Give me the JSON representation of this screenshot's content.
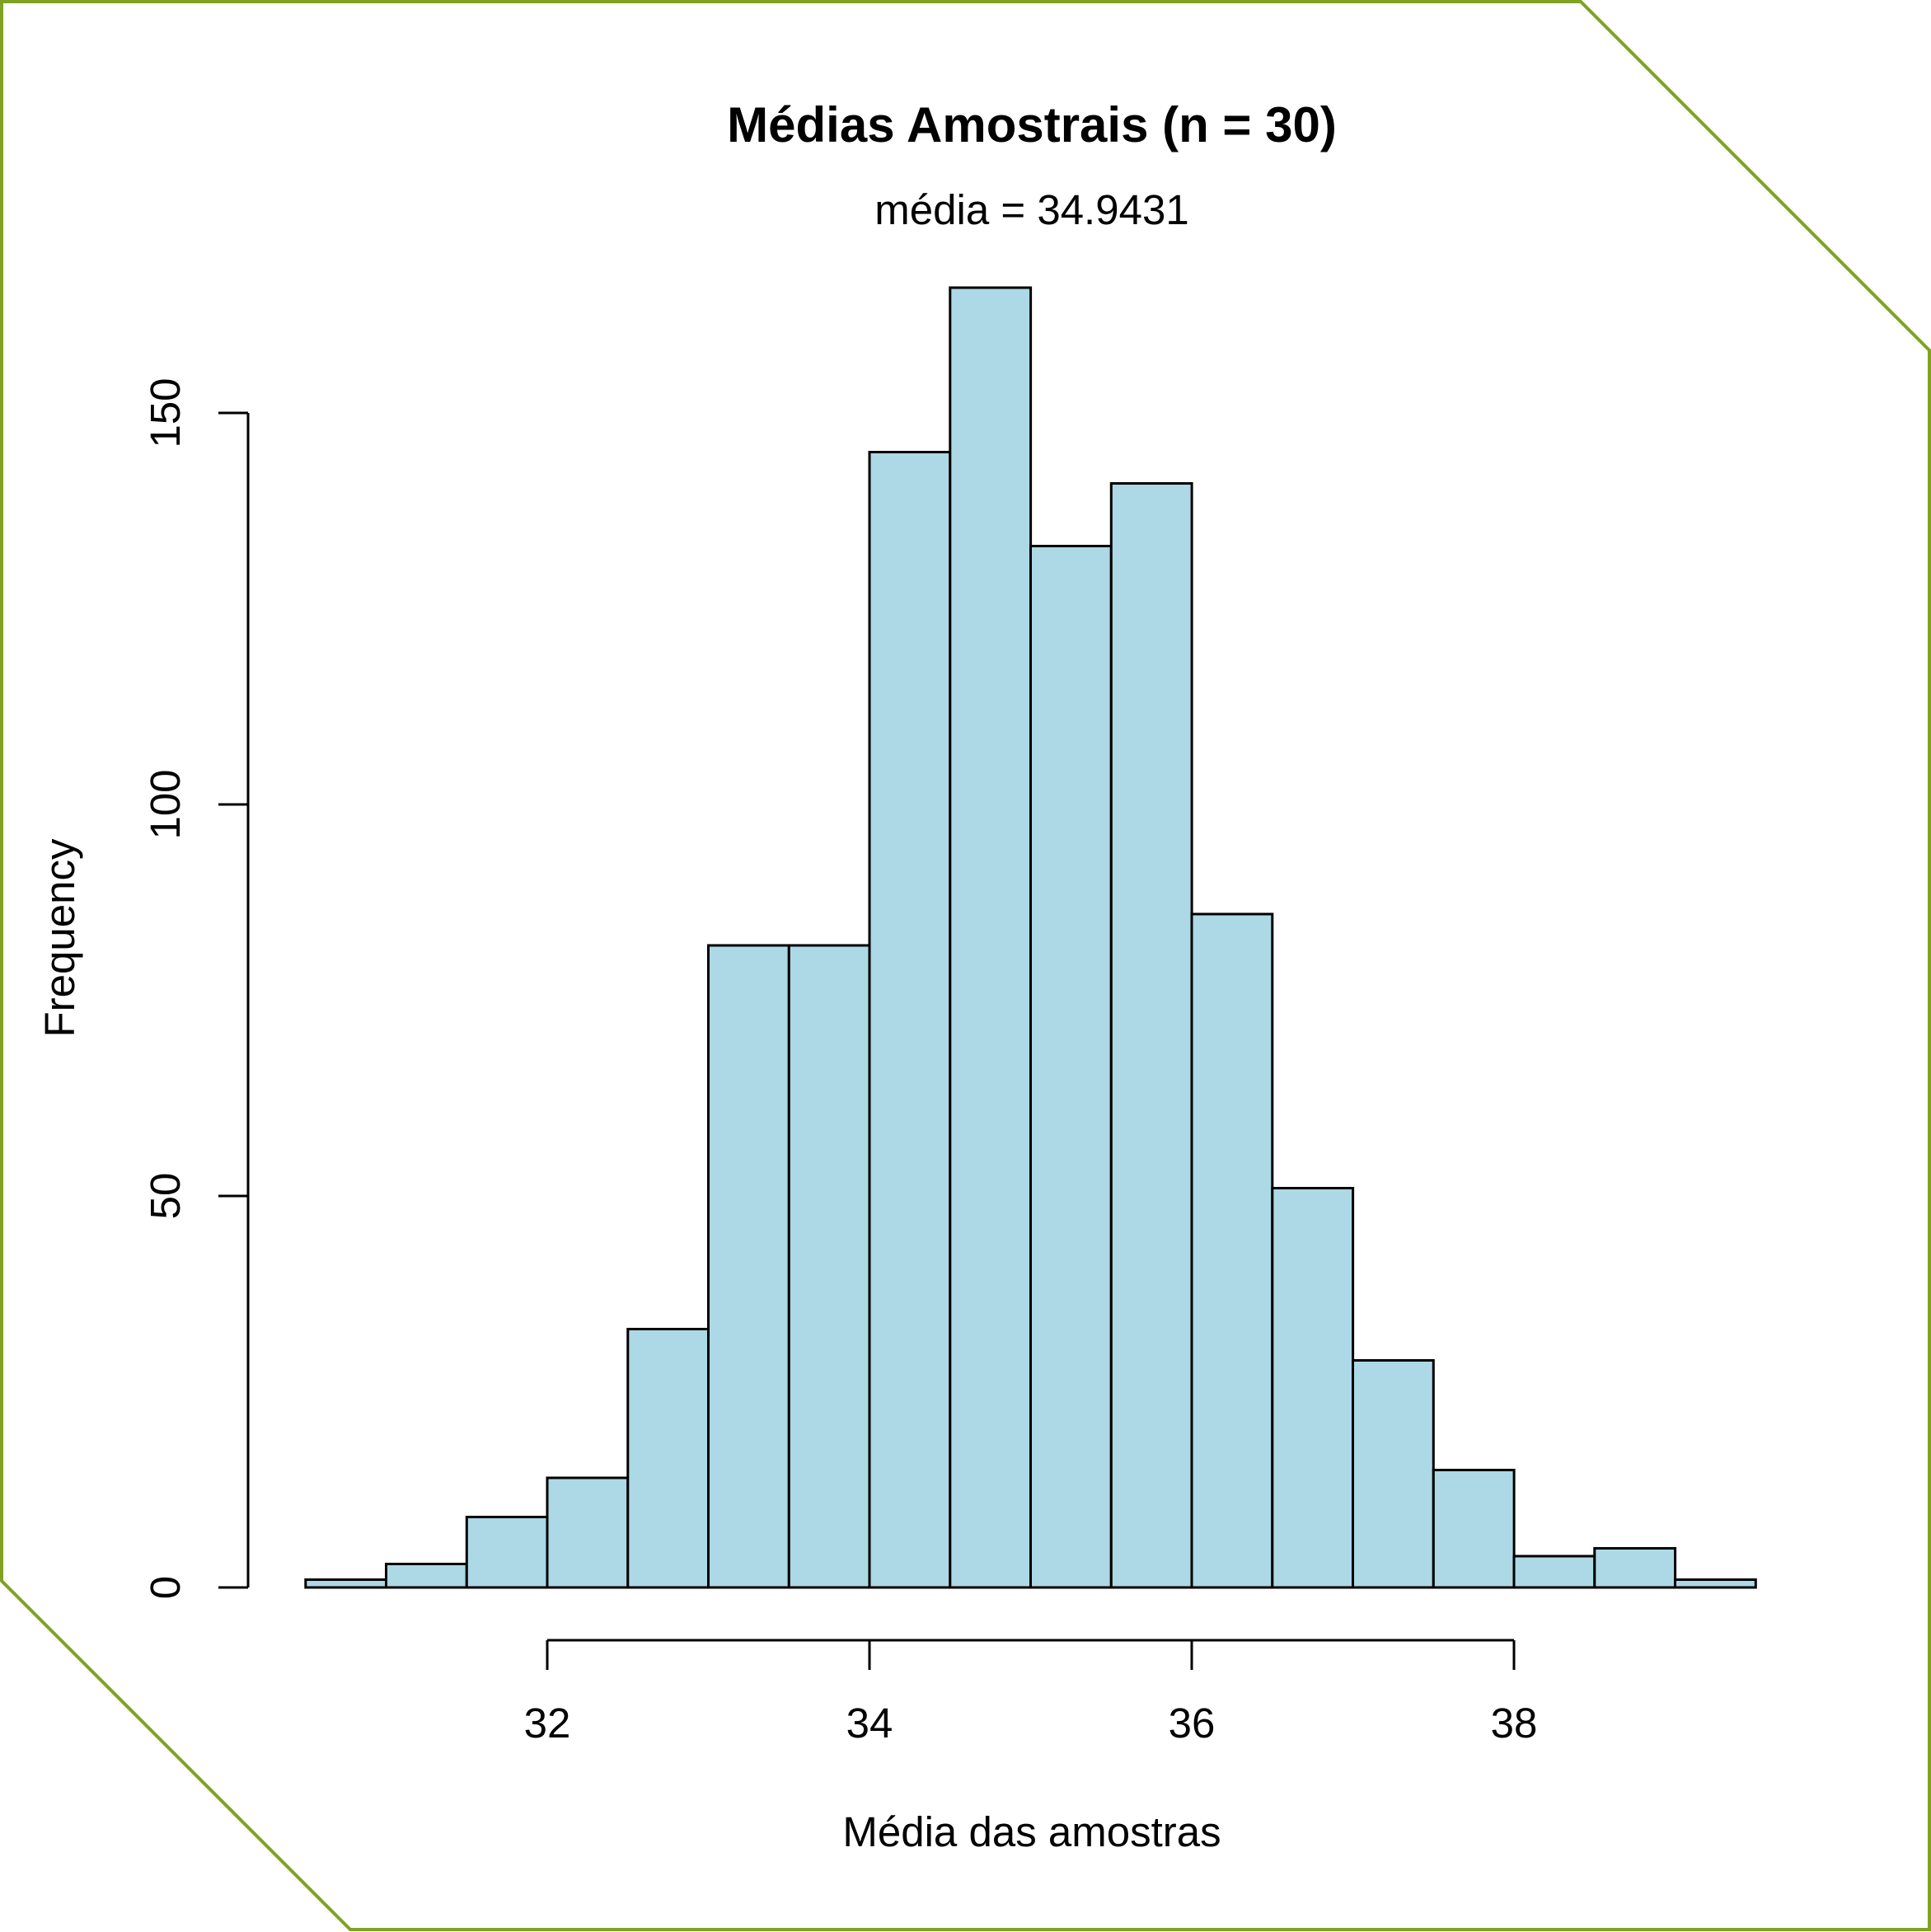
{
  "colors": {
    "frame": "#7fa224",
    "bar_fill": "#add8e6",
    "bar_stroke": "#000000",
    "axis": "#000000",
    "background": "#ffffff"
  },
  "chart_data": {
    "type": "bar",
    "subtype": "histogram",
    "title": "Médias Amostrais (n = 30)",
    "subtitle": "média = 34.9431",
    "xlabel": "Média das amostras",
    "ylabel": "Frequency",
    "bin_width": 0.5,
    "bin_edges": [
      30.5,
      31.0,
      31.5,
      32.0,
      32.5,
      33.0,
      33.5,
      34.0,
      34.5,
      35.0,
      35.5,
      36.0,
      36.5,
      37.0,
      37.5,
      38.0,
      38.5,
      39.0,
      39.5
    ],
    "values": [
      1,
      3,
      9,
      14,
      33,
      82,
      82,
      145,
      166,
      133,
      141,
      86,
      51,
      29,
      15,
      4,
      5,
      1
    ],
    "xlim": [
      30.5,
      39.5
    ],
    "ylim": [
      0,
      166
    ],
    "x_ticks": [
      32,
      34,
      36,
      38
    ],
    "x_tick_labels": [
      "32",
      "34",
      "36",
      "38"
    ],
    "y_ticks": [
      0,
      50,
      100,
      150
    ],
    "y_tick_labels": [
      "0",
      "50",
      "100",
      "150"
    ],
    "grid": false,
    "legend": "none"
  }
}
